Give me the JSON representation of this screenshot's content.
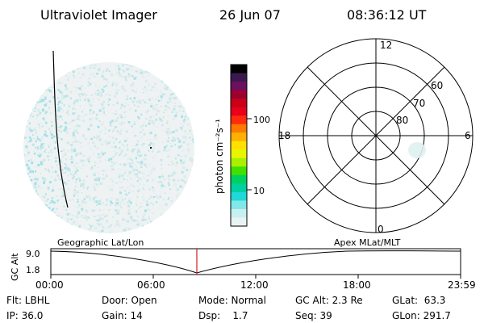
{
  "header": {
    "instrument": "Ultraviolet Imager",
    "date": "26 Jun 07",
    "time": "08:36:12 UT"
  },
  "colorbar": {
    "unit_label": "photon cm⁻²s⁻¹",
    "ticks": [
      "100",
      "10"
    ],
    "colors": [
      "#000000",
      "#3a1a4e",
      "#6b0f5e",
      "#9b0030",
      "#c80018",
      "#e8001a",
      "#ff2a10",
      "#ff7800",
      "#ffb000",
      "#ffe000",
      "#e8f500",
      "#a8f000",
      "#40e000",
      "#00d060",
      "#00d0a0",
      "#20d8d8",
      "#80e8e8",
      "#c8f0f0",
      "#e8f4f4"
    ]
  },
  "polar_plot": {
    "mlt_labels": {
      "top": "12",
      "left": "18",
      "right": "6",
      "bottom": "0"
    },
    "lat_labels": [
      "60",
      "70",
      "80"
    ]
  },
  "altitude_strip": {
    "y_label": "GC Alt",
    "y_ticks": [
      "9.0",
      "1.8"
    ],
    "left_caption": "Geographic Lat/Lon",
    "right_caption": "Apex  MLat/MLT",
    "x_ticks": [
      "00:00",
      "06:00",
      "12:00",
      "18:00",
      "23:59"
    ]
  },
  "info": {
    "filter": "Flt: LBHL",
    "door": "Door: Open",
    "mode": "Mode: Normal",
    "gc_alt": "GC Alt: 2.3 Re",
    "glat": "GLat:  63.3",
    "ip": "IP: 36.0",
    "gain": "Gain: 14",
    "dsp": "Dsp:    1.7",
    "seq": "Seq: 39",
    "glon": "GLon: 291.7"
  }
}
